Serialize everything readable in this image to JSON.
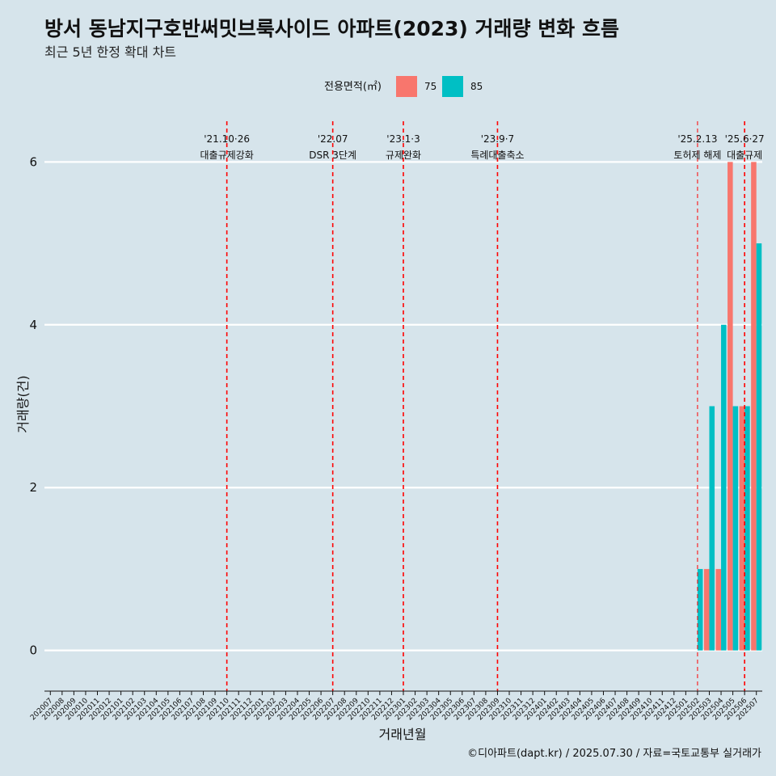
{
  "header": {
    "title": "방서 동남지구호반써밋브룩사이드 아파트(2023) 거래량 변화 흐름",
    "subtitle": "최근 5년 한정 확대 차트"
  },
  "legend": {
    "title": "전용면적(㎡)",
    "items": [
      {
        "label": "75",
        "color": "#f8766d"
      },
      {
        "label": "85",
        "color": "#00bfc4"
      }
    ]
  },
  "caption": "©디아파트(dapt.kr) / 2025.07.30 / 자료=국토교통부 실거래가",
  "chart_data": {
    "type": "bar",
    "xlabel": "거래년월",
    "ylabel": "거래량(건)",
    "ylim": [
      -0.5,
      6.5
    ],
    "yticks": [
      0,
      2,
      4,
      6
    ],
    "grid": true,
    "legend_position": "top",
    "categories": [
      "202007",
      "202008",
      "202009",
      "202010",
      "202011",
      "202012",
      "202101",
      "202102",
      "202103",
      "202104",
      "202105",
      "202106",
      "202107",
      "202108",
      "202109",
      "202110",
      "202111",
      "202112",
      "202201",
      "202202",
      "202203",
      "202204",
      "202205",
      "202206",
      "202207",
      "202208",
      "202209",
      "202210",
      "202211",
      "202212",
      "202301",
      "202302",
      "202303",
      "202304",
      "202305",
      "202306",
      "202307",
      "202308",
      "202309",
      "202310",
      "202311",
      "202312",
      "202401",
      "202402",
      "202403",
      "202404",
      "202405",
      "202406",
      "202407",
      "202408",
      "202409",
      "202410",
      "202411",
      "202412",
      "202501",
      "202502",
      "202503",
      "202504",
      "202505",
      "202506",
      "202507"
    ],
    "series": [
      {
        "name": "75",
        "color": "#f8766d",
        "points": [
          {
            "x": "202503",
            "y": 1
          },
          {
            "x": "202504",
            "y": 1
          },
          {
            "x": "202505",
            "y": 6
          },
          {
            "x": "202506",
            "y": 3
          },
          {
            "x": "202507",
            "y": 6
          }
        ]
      },
      {
        "name": "85",
        "color": "#00bfc4",
        "points": [
          {
            "x": "202502",
            "y": 1
          },
          {
            "x": "202503",
            "y": 3
          },
          {
            "x": "202504",
            "y": 4
          },
          {
            "x": "202505",
            "y": 3
          },
          {
            "x": "202506",
            "y": 3
          },
          {
            "x": "202507",
            "y": 5
          }
        ]
      }
    ],
    "events": [
      {
        "month": "202110",
        "date": "'21.10·26",
        "label": "대출규제강화"
      },
      {
        "month": "202207",
        "date": "'22.07",
        "label": "DSR 3단계"
      },
      {
        "month": "202301",
        "date": "'23.1·3",
        "label": "규제완화"
      },
      {
        "month": "202309",
        "date": "'23.9·7",
        "label": "특례대출축소"
      },
      {
        "month": "202502",
        "date": "'25.2.13",
        "label": "토허제 해제"
      },
      {
        "month": "202506",
        "date": "'25.6·27",
        "label": "대출규제"
      }
    ]
  }
}
